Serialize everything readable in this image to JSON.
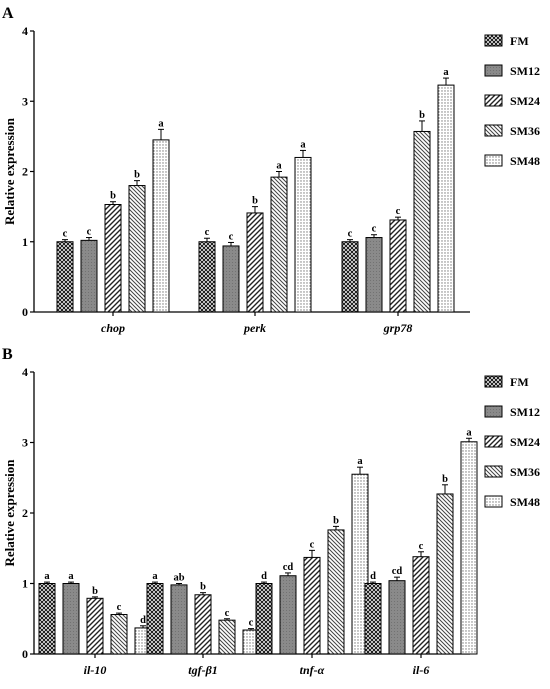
{
  "series_names": [
    "FM",
    "SM12",
    "SM24",
    "SM36",
    "SM48"
  ],
  "chart_data": [
    {
      "type": "bar",
      "panel_label": "A",
      "ylabel": "Relative expression",
      "ylim": [
        0,
        4
      ],
      "yticks": [
        "0",
        "1",
        "2",
        "3",
        "4"
      ],
      "categories": [
        "chop",
        "perk",
        "grp78"
      ],
      "series": [
        {
          "name": "FM",
          "values": [
            1.0,
            1.0,
            1.0
          ],
          "errors": [
            0.03,
            0.05,
            0.03
          ],
          "letters": [
            "c",
            "c",
            "c"
          ]
        },
        {
          "name": "SM12",
          "values": [
            1.02,
            0.94,
            1.06
          ],
          "errors": [
            0.04,
            0.05,
            0.04
          ],
          "letters": [
            "c",
            "c",
            "c"
          ]
        },
        {
          "name": "SM24",
          "values": [
            1.53,
            1.41,
            1.31
          ],
          "errors": [
            0.04,
            0.09,
            0.04
          ],
          "letters": [
            "b",
            "b",
            "c"
          ]
        },
        {
          "name": "SM36",
          "values": [
            1.8,
            1.92,
            2.57
          ],
          "errors": [
            0.07,
            0.08,
            0.15
          ],
          "letters": [
            "b",
            "a",
            "b"
          ]
        },
        {
          "name": "SM48",
          "values": [
            2.45,
            2.2,
            3.23
          ],
          "errors": [
            0.15,
            0.1,
            0.1
          ],
          "letters": [
            "a",
            "a",
            "a"
          ]
        }
      ],
      "legend": "right"
    },
    {
      "type": "bar",
      "panel_label": "B",
      "ylabel": "Relative expression",
      "ylim": [
        0,
        4
      ],
      "yticks": [
        "0",
        "1",
        "2",
        "3",
        "4"
      ],
      "categories": [
        "il-10",
        "tgf-β1",
        "tnf-α",
        "il-6"
      ],
      "series": [
        {
          "name": "FM",
          "values": [
            1.0,
            1.0,
            1.0,
            1.0
          ],
          "errors": [
            0.02,
            0.02,
            0.02,
            0.02
          ],
          "letters": [
            "a",
            "a",
            "d",
            "d"
          ]
        },
        {
          "name": "SM12",
          "values": [
            1.0,
            0.98,
            1.11,
            1.04
          ],
          "errors": [
            0.02,
            0.02,
            0.04,
            0.05
          ],
          "letters": [
            "a",
            "ab",
            "cd",
            "cd"
          ]
        },
        {
          "name": "SM24",
          "values": [
            0.79,
            0.84,
            1.37,
            1.38
          ],
          "errors": [
            0.02,
            0.03,
            0.1,
            0.07
          ],
          "letters": [
            "b",
            "b",
            "c",
            "c"
          ]
        },
        {
          "name": "SM36",
          "values": [
            0.56,
            0.48,
            1.76,
            2.27
          ],
          "errors": [
            0.02,
            0.02,
            0.05,
            0.13
          ],
          "letters": [
            "c",
            "c",
            "b",
            "b"
          ]
        },
        {
          "name": "SM48",
          "values": [
            0.37,
            0.34,
            2.55,
            3.01
          ],
          "errors": [
            0.03,
            0.02,
            0.1,
            0.05
          ],
          "letters": [
            "d",
            "c",
            "a",
            "a"
          ]
        }
      ],
      "legend": "right"
    }
  ]
}
